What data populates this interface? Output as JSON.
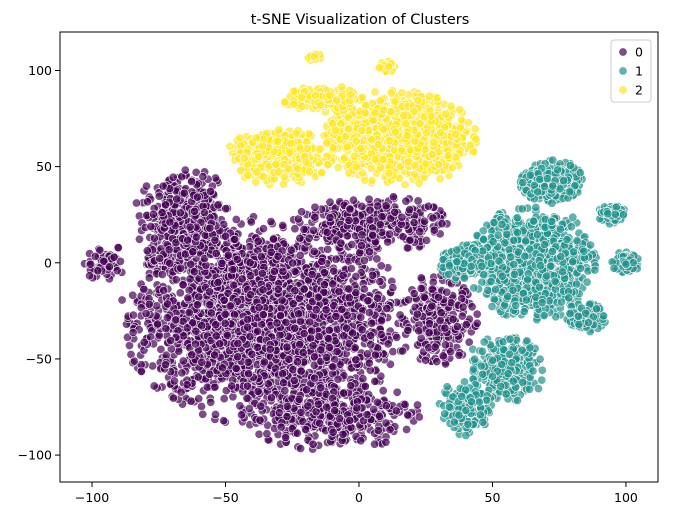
{
  "chart_data": {
    "type": "scatter",
    "title": "t-SNE Visualization of Clusters",
    "xlabel": "",
    "ylabel": "",
    "xlim": [
      -112,
      112
    ],
    "ylim": [
      -114,
      120
    ],
    "xticks": [
      -100,
      -50,
      0,
      50,
      100
    ],
    "yticks": [
      -100,
      -50,
      0,
      50,
      100
    ],
    "grid": false,
    "legend_position": "top-right",
    "series": [
      {
        "name": "0",
        "color": "#440154",
        "clusters": [
          {
            "cx": -35,
            "cy": -30,
            "rx": 55,
            "ry": 55,
            "n": 2600
          },
          {
            "cx": -65,
            "cy": 20,
            "rx": 20,
            "ry": 30,
            "n": 450
          },
          {
            "cx": 5,
            "cy": 20,
            "rx": 30,
            "ry": 15,
            "n": 350
          },
          {
            "cx": -10,
            "cy": -80,
            "rx": 35,
            "ry": 18,
            "n": 350
          },
          {
            "cx": 30,
            "cy": -30,
            "rx": 15,
            "ry": 25,
            "n": 250
          },
          {
            "cx": -95,
            "cy": 0,
            "rx": 8,
            "ry": 10,
            "n": 60
          }
        ]
      },
      {
        "name": "1",
        "color": "#21918c",
        "clusters": [
          {
            "cx": 65,
            "cy": 0,
            "rx": 25,
            "ry": 30,
            "n": 900
          },
          {
            "cx": 72,
            "cy": 42,
            "rx": 12,
            "ry": 12,
            "n": 350
          },
          {
            "cx": 55,
            "cy": -55,
            "rx": 15,
            "ry": 18,
            "n": 300
          },
          {
            "cx": 40,
            "cy": -75,
            "rx": 10,
            "ry": 15,
            "n": 150
          },
          {
            "cx": 85,
            "cy": -28,
            "rx": 8,
            "ry": 8,
            "n": 120
          },
          {
            "cx": 100,
            "cy": 0,
            "rx": 6,
            "ry": 6,
            "n": 90
          },
          {
            "cx": 95,
            "cy": 25,
            "rx": 6,
            "ry": 5,
            "n": 80
          },
          {
            "cx": 40,
            "cy": 0,
            "rx": 10,
            "ry": 10,
            "n": 200
          }
        ]
      },
      {
        "name": "2",
        "color": "#fde725",
        "clusters": [
          {
            "cx": 15,
            "cy": 65,
            "rx": 30,
            "ry": 25,
            "n": 1100
          },
          {
            "cx": -30,
            "cy": 55,
            "rx": 20,
            "ry": 15,
            "n": 450
          },
          {
            "cx": -15,
            "cy": 85,
            "rx": 15,
            "ry": 8,
            "n": 150
          },
          {
            "cx": 10,
            "cy": 102,
            "rx": 4,
            "ry": 3,
            "n": 25
          },
          {
            "cx": -17,
            "cy": 107,
            "rx": 3,
            "ry": 2,
            "n": 15
          }
        ]
      }
    ]
  }
}
